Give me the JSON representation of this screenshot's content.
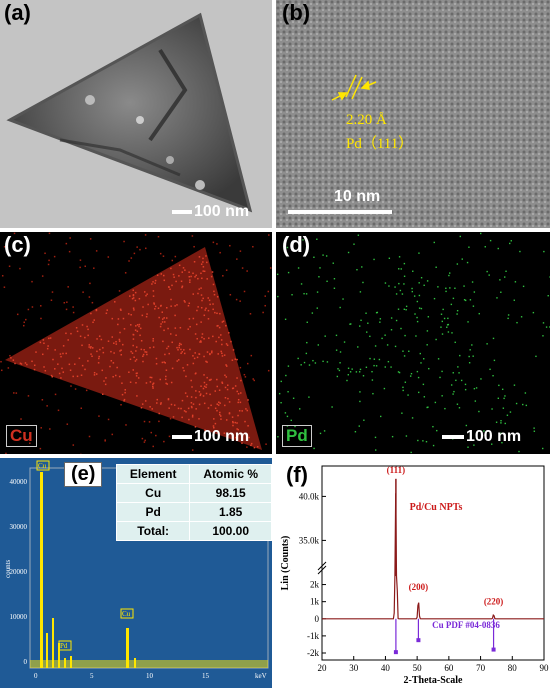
{
  "panels": {
    "a": {
      "label": "(a)",
      "scale": "100 nm"
    },
    "b": {
      "label": "(b)",
      "scale": "10 nm",
      "lattice": "2.20 Å",
      "plane": "Pd（111）"
    },
    "c": {
      "label": "(c)",
      "scale": "100 nm",
      "element": "Cu"
    },
    "d": {
      "label": "(d)",
      "scale": "100 nm",
      "element": "Pd"
    },
    "e": {
      "label": "(e)",
      "table": {
        "headers": [
          "Element",
          "Atomic %"
        ],
        "rows": [
          [
            "Cu",
            "98.15"
          ],
          [
            "Pd",
            "1.85"
          ],
          [
            "Total:",
            "100.00"
          ]
        ]
      },
      "y_ticks": [
        "0",
        "10000",
        "20000",
        "30000",
        "40000"
      ],
      "y_unit": "counts",
      "x_ticks": [
        "0",
        "5",
        "10",
        "15"
      ],
      "x_unit": "keV",
      "peak_tags": [
        "Cu",
        "Pd",
        "Cu"
      ]
    },
    "f": {
      "label": "(f)"
    }
  },
  "chart_data": {
    "type": "line",
    "legend": "Pd/Cu NPTs",
    "ylabel": "Lin (Counts)",
    "xlabel": "2-Theta-Scale",
    "xlim": [
      20,
      90
    ],
    "x_ticks": [
      "20",
      "30",
      "40",
      "50",
      "60",
      "70",
      "80",
      "90"
    ],
    "y_ticks_upper": [
      "35.0k",
      "40.0k"
    ],
    "y_ticks_lower": [
      "-2k",
      "-1k",
      "0",
      "1k",
      "2k"
    ],
    "peaks": [
      {
        "label": "(111)",
        "x": 43.3,
        "y": 42000
      },
      {
        "label": "(200)",
        "x": 50.4,
        "y": 1100
      },
      {
        "label": "(220)",
        "x": 74.1,
        "y": 250
      }
    ],
    "reference": {
      "name": "Cu PDF #04-0836",
      "x": [
        43.3,
        50.4,
        74.1
      ],
      "y": [
        -1950,
        -1250,
        -1800
      ]
    }
  },
  "colors": {
    "cu_map": "#d03020",
    "pd_map": "#30c040",
    "eds_bg": "#1f5a96",
    "xrd_line": "#8b1a1a",
    "ref": "#7a2ad8",
    "label_red": "#cc1a1a"
  }
}
